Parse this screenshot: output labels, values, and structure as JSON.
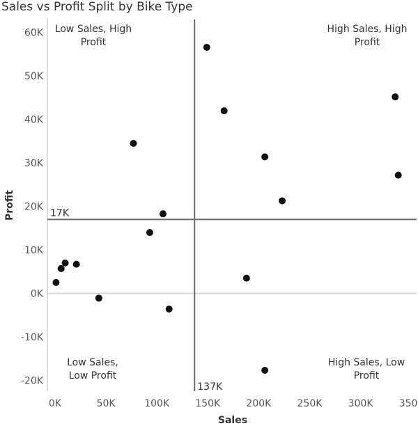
{
  "chart_data": {
    "type": "scatter",
    "title": "Sales vs Profit Split by Bike Type",
    "xlabel": "Sales",
    "ylabel": "Profit",
    "xlim": [
      -7500,
      355000
    ],
    "ylim": [
      -22500,
      63000
    ],
    "x_ticks": [
      {
        "value": 0,
        "label": "0K"
      },
      {
        "value": 50000,
        "label": "50K"
      },
      {
        "value": 100000,
        "label": "100K"
      },
      {
        "value": 150000,
        "label": "150K"
      },
      {
        "value": 200000,
        "label": "200K"
      },
      {
        "value": 250000,
        "label": "250K"
      },
      {
        "value": 300000,
        "label": "300K"
      },
      {
        "value": 350000,
        "label": "350K"
      }
    ],
    "y_ticks": [
      {
        "value": 60000,
        "label": "60K"
      },
      {
        "value": 50000,
        "label": "50K"
      },
      {
        "value": 40000,
        "label": "40K"
      },
      {
        "value": 30000,
        "label": "30K"
      },
      {
        "value": 20000,
        "label": "20K"
      },
      {
        "value": 10000,
        "label": "10K"
      },
      {
        "value": 0,
        "label": "0K"
      },
      {
        "value": -10000,
        "label": "-10K"
      },
      {
        "value": -20000,
        "label": "-20K"
      }
    ],
    "reference_lines": {
      "x": {
        "value": 137000,
        "label": "137K"
      },
      "y": {
        "value": 17000,
        "label": "17K"
      }
    },
    "quadrant_labels": {
      "top_left": [
        "Low Sales, High",
        "Profit"
      ],
      "top_right": [
        "High Sales, High",
        "Profit"
      ],
      "bottom_left": [
        "Low Sales,",
        "Low Profit"
      ],
      "bottom_right": [
        "High Sales, Low",
        "Profit"
      ]
    },
    "points": [
      {
        "x": 1000,
        "y": 2500
      },
      {
        "x": 6000,
        "y": 5700
      },
      {
        "x": 10000,
        "y": 7000
      },
      {
        "x": 21000,
        "y": 6700
      },
      {
        "x": 43000,
        "y": -1100
      },
      {
        "x": 77000,
        "y": 34500
      },
      {
        "x": 93000,
        "y": 14000
      },
      {
        "x": 106000,
        "y": 18300
      },
      {
        "x": 112000,
        "y": -3600
      },
      {
        "x": 149000,
        "y": 56600
      },
      {
        "x": 166000,
        "y": 42000
      },
      {
        "x": 188000,
        "y": 3500
      },
      {
        "x": 206000,
        "y": 31400
      },
      {
        "x": 206000,
        "y": -17700
      },
      {
        "x": 223000,
        "y": 21300
      },
      {
        "x": 334000,
        "y": 45200
      },
      {
        "x": 337000,
        "y": 27200
      }
    ],
    "colors": {
      "point": "#111111",
      "axis": "#777777",
      "refline": "#6b6469",
      "gridline": "#cfcfcf"
    },
    "grid": false,
    "legend": "none"
  }
}
